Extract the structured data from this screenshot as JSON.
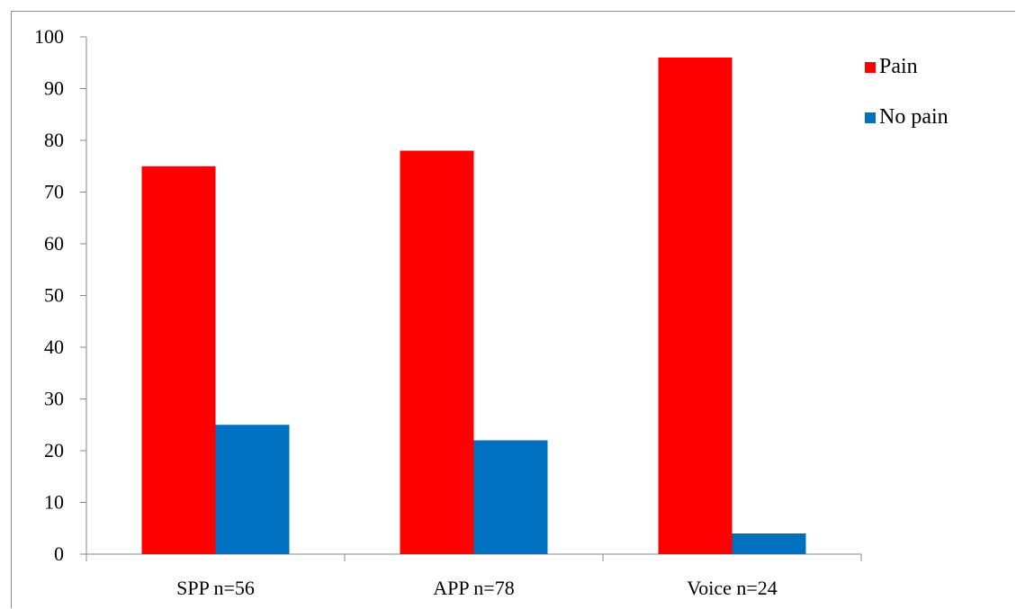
{
  "chart_data": {
    "type": "bar",
    "categories": [
      "SPP n=56",
      "APP n=78",
      "Voice n=24"
    ],
    "series": [
      {
        "name": "Pain",
        "values": [
          75,
          78,
          96
        ],
        "color": "#ff0000"
      },
      {
        "name": "No pain",
        "values": [
          25,
          22,
          4
        ],
        "color": "#0070c0"
      }
    ],
    "ylim": [
      0,
      100
    ],
    "yticks": [
      0,
      10,
      20,
      30,
      40,
      50,
      60,
      70,
      80,
      90,
      100
    ],
    "grid": false,
    "legend_position": "top-right",
    "title": "",
    "xlabel": "",
    "ylabel": ""
  }
}
